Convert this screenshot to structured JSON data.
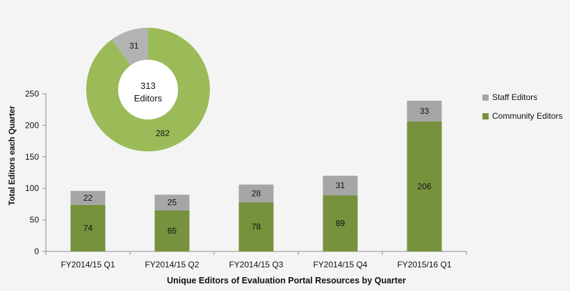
{
  "chart_data": [
    {
      "type": "bar",
      "stacked": true,
      "title": "",
      "xlabel": "Unique Editors of Evaluation Portal Resources by Quarter",
      "ylabel": "Total Editors each Quarter",
      "ylim": [
        0,
        250
      ],
      "yticks": [
        0,
        50,
        100,
        150,
        200,
        250
      ],
      "grid": false,
      "legend_position": "right",
      "categories": [
        "FY2014/15 Q1",
        "FY2014/15 Q2",
        "FY2014/15 Q3",
        "FY2014/15 Q4",
        "FY2015/16 Q1"
      ],
      "series": [
        {
          "name": "Community Editors",
          "color": "#76923c",
          "values": [
            74,
            65,
            78,
            89,
            206
          ]
        },
        {
          "name": "Staff Editors",
          "color": "#a6a6a6",
          "values": [
            22,
            25,
            28,
            31,
            33
          ]
        }
      ]
    },
    {
      "type": "pie",
      "donut": true,
      "center_label": [
        "313",
        "Editors"
      ],
      "slices": [
        {
          "name": "Staff Editors",
          "value": 31,
          "color": "#b3b3b3"
        },
        {
          "name": "Community Editors",
          "value": 282,
          "color": "#9bbb59"
        }
      ]
    }
  ],
  "legend": {
    "items": [
      {
        "label": "Staff Editors",
        "color": "#a6a6a6"
      },
      {
        "label": "Community Editors",
        "color": "#76923c"
      }
    ]
  },
  "axis": {
    "xlabel": "Unique Editors of Evaluation Portal Resources by Quarter",
    "ylabel": "Total Editors each Quarter"
  }
}
